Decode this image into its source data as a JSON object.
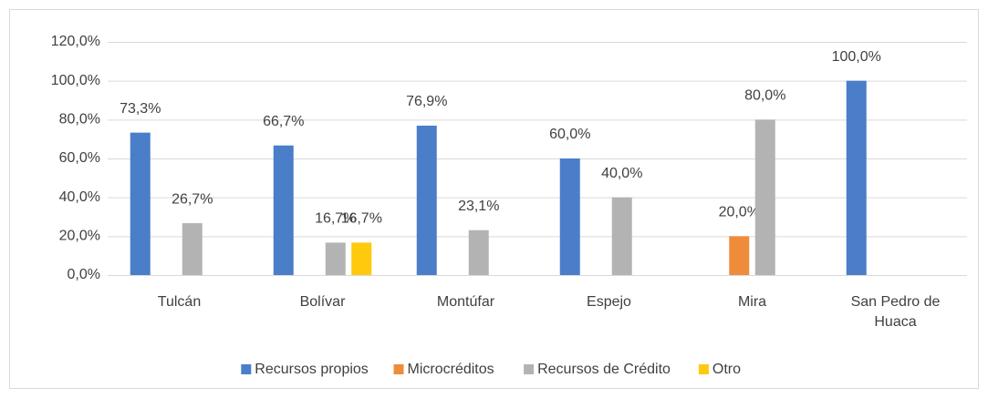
{
  "chart_data": {
    "type": "bar",
    "categories": [
      "Tulcán",
      "Bolívar",
      "Montúfar",
      "Espejo",
      "Mira",
      "San Pedro de Huaca"
    ],
    "series": [
      {
        "name": "Recursos propios",
        "color": "#4a7ec8",
        "values": [
          73.3,
          66.7,
          76.9,
          60.0,
          null,
          100.0
        ],
        "value_labels": [
          "73,3%",
          "66,7%",
          "76,9%",
          "60,0%",
          null,
          "100,0%"
        ]
      },
      {
        "name": "Microcréditos",
        "color": "#ef8c3c",
        "values": [
          null,
          null,
          null,
          null,
          20.0,
          null
        ],
        "value_labels": [
          null,
          null,
          null,
          null,
          "20,0%",
          null
        ]
      },
      {
        "name": "Recursos de Crédito",
        "color": "#b3b3b3",
        "values": [
          26.7,
          16.7,
          23.1,
          40.0,
          80.0,
          null
        ],
        "value_labels": [
          "26,7%",
          "16,7%",
          "23,1%",
          "40,0%",
          "80,0%",
          null
        ]
      },
      {
        "name": "Otro",
        "color": "#ffc90e",
        "values": [
          null,
          16.7,
          null,
          null,
          null,
          null
        ],
        "value_labels": [
          null,
          "16,7%",
          null,
          null,
          null,
          null
        ]
      }
    ],
    "ylim": [
      0,
      120
    ],
    "yticks": [
      {
        "value": 0,
        "label": "0,0%"
      },
      {
        "value": 20,
        "label": "20,0%"
      },
      {
        "value": 40,
        "label": "40,0%"
      },
      {
        "value": 60,
        "label": "60,0%"
      },
      {
        "value": 80,
        "label": "80,0%"
      },
      {
        "value": 100,
        "label": "100,0%"
      },
      {
        "value": 120,
        "label": "120,0%"
      }
    ],
    "grid": true,
    "legend": "bottom"
  }
}
